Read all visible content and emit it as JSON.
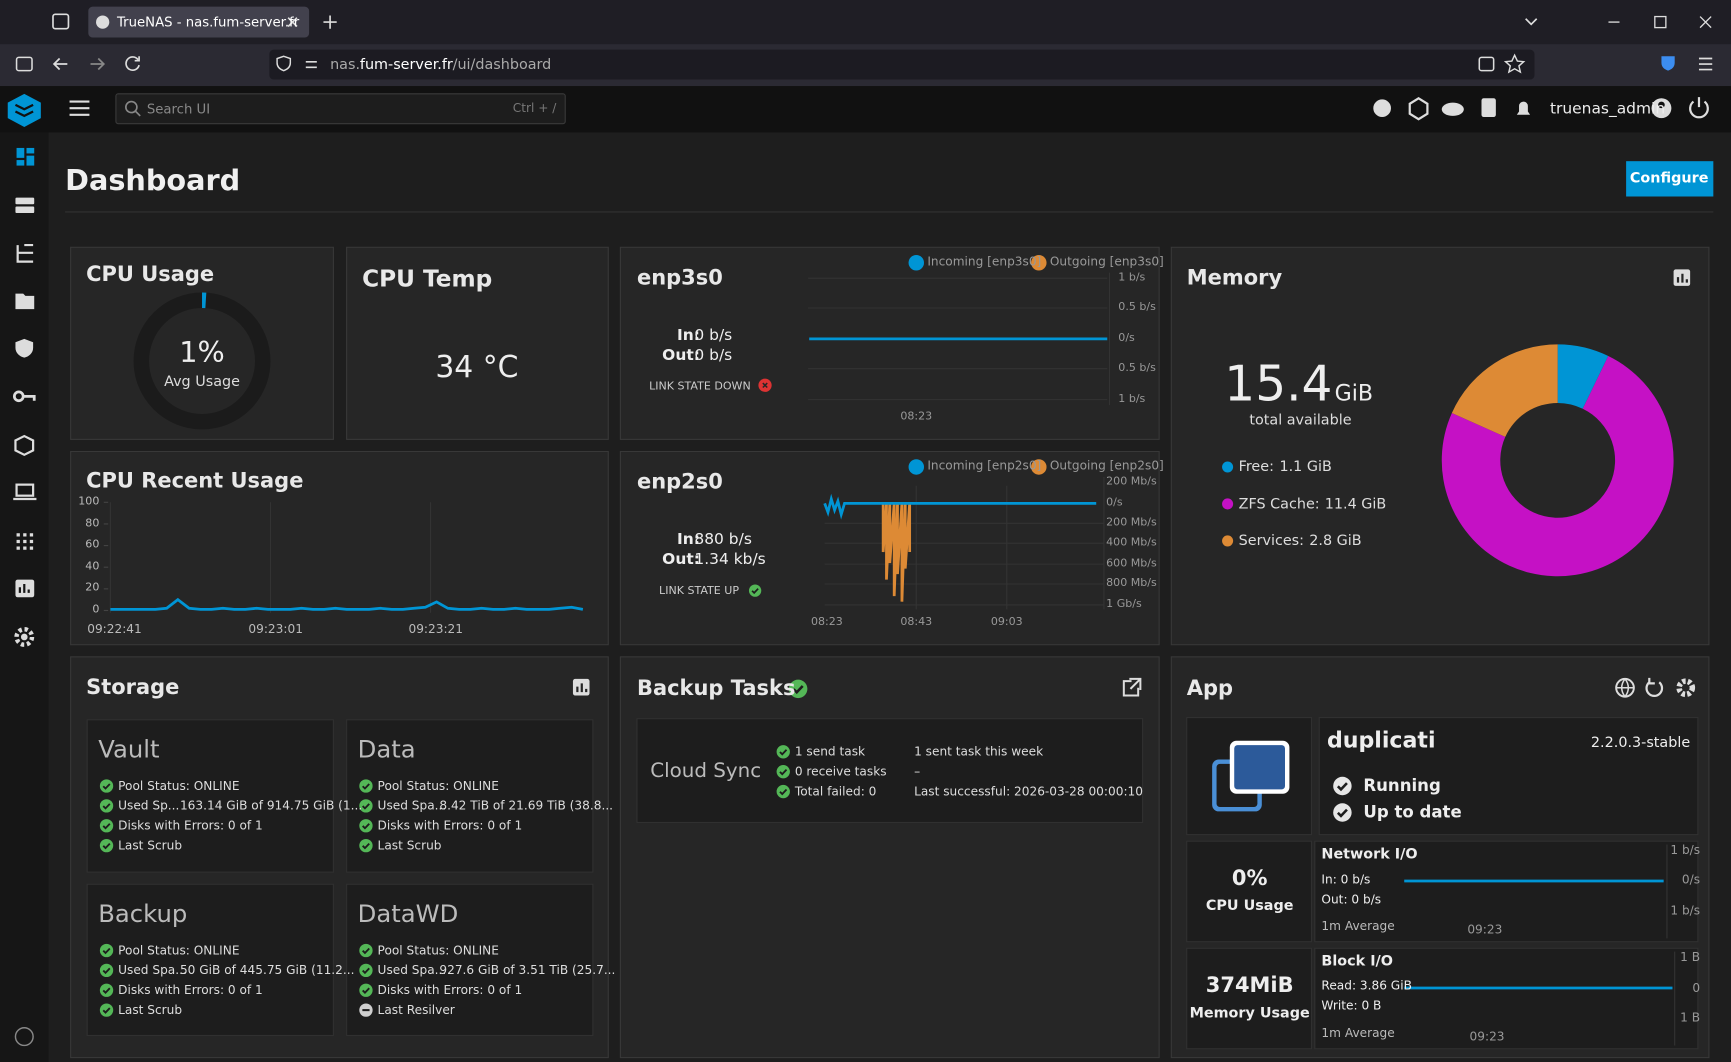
{
  "browser": {
    "tab_title": "TrueNAS - nas.fum-server.fr",
    "url": {
      "subdomain": "nas.",
      "domain": "fum-server.fr",
      "path": "/ui/dashboard"
    }
  },
  "topbar": {
    "search_placeholder": "Search UI",
    "search_shortcut": "Ctrl + /",
    "username": "truenas_admin"
  },
  "header": {
    "title": "Dashboard",
    "configure_button": "Configure"
  },
  "widgets": {
    "cpu_usage": {
      "title": "CPU Usage",
      "value": 1,
      "value_label": "1%",
      "caption": "Avg Usage",
      "color": "#0095d5"
    },
    "cpu_temp": {
      "title": "CPU Temp",
      "reading": "34 °C"
    },
    "enp3s0": {
      "title": "enp3s0",
      "legend": [
        "Incoming [enp3s0]",
        "Outgoing [enp3s0]"
      ],
      "in_label": "In:",
      "in_value": "0 b/s",
      "out_label": "Out:",
      "out_value": "0 b/s",
      "link_state": "LINK STATE DOWN",
      "y_labels": [
        "1 b/s",
        "0.5 b/s",
        "0/s",
        "0.5 b/s",
        "1 b/s"
      ],
      "x_labels": [
        "08:23"
      ]
    },
    "enp2s0": {
      "title": "enp2s0",
      "legend": [
        "Incoming [enp2s0]",
        "Outgoing [enp2s0]"
      ],
      "in_label": "In:",
      "in_value": "880 b/s",
      "out_label": "Out:",
      "out_value": "1.34 kb/s",
      "link_state": "LINK STATE UP",
      "y_labels": [
        "200 Mb/s",
        "0/s",
        "200 Mb/s",
        "400 Mb/s",
        "600 Mb/s",
        "800 Mb/s",
        "1 Gb/s"
      ],
      "x_labels": [
        "08:23",
        "08:43",
        "09:03"
      ]
    },
    "cpu_recent": {
      "type": "line",
      "title": "CPU Recent Usage",
      "color": "#0095d5",
      "ylim": [
        0,
        100
      ],
      "yticks": [
        0,
        20,
        40,
        60,
        80,
        100
      ],
      "x_labels": [
        "09:22:41",
        "09:23:01",
        "09:23:21"
      ],
      "values": [
        1,
        1,
        1,
        1,
        1,
        2,
        10,
        2,
        1,
        1,
        2,
        1,
        1,
        2,
        1,
        1,
        1,
        2,
        1,
        1,
        2,
        1,
        1,
        1,
        2,
        1,
        1,
        2,
        3,
        8,
        2,
        1,
        1,
        2,
        1,
        1,
        2,
        1,
        1,
        1,
        2,
        3,
        1
      ]
    },
    "memory": {
      "type": "pie",
      "title": "Memory",
      "total": "15.4",
      "total_unit": "GiB",
      "caption": "total available",
      "items": [
        {
          "label": "Free:",
          "value": 1.1,
          "value_label": "1.1 GiB",
          "color": "#0095d5"
        },
        {
          "label": "ZFS Cache:",
          "value": 11.4,
          "value_label": "11.4 GiB",
          "color": "#c511c5"
        },
        {
          "label": "Services:",
          "value": 2.8,
          "value_label": "2.8 GiB",
          "color": "#dd8a35"
        }
      ]
    },
    "storage": {
      "title": "Storage",
      "pools": [
        {
          "name": "Vault",
          "lines": [
            {
              "status": "ok",
              "text": "Pool Status: ONLINE"
            },
            {
              "status": "ok",
              "text": "Used Sp...",
              "detail": "163.14 GiB of 914.75 GiB (1..."
            },
            {
              "status": "ok",
              "text": "Disks with Errors: 0 of 1"
            },
            {
              "status": "ok",
              "text": "Last Scrub"
            }
          ]
        },
        {
          "name": "Data",
          "lines": [
            {
              "status": "ok",
              "text": "Pool Status: ONLINE"
            },
            {
              "status": "ok",
              "text": "Used Spa...",
              "detail": "8.42 TiB of 21.69 TiB (38.8..."
            },
            {
              "status": "ok",
              "text": "Disks with Errors: 0 of 1"
            },
            {
              "status": "ok",
              "text": "Last Scrub"
            }
          ]
        },
        {
          "name": "Backup",
          "lines": [
            {
              "status": "ok",
              "text": "Pool Status: ONLINE"
            },
            {
              "status": "ok",
              "text": "Used Spa...",
              "detail": "50 GiB of 445.75 GiB (11.2..."
            },
            {
              "status": "ok",
              "text": "Disks with Errors: 0 of 1"
            },
            {
              "status": "ok",
              "text": "Last Scrub"
            }
          ]
        },
        {
          "name": "DataWD",
          "lines": [
            {
              "status": "ok",
              "text": "Pool Status: ONLINE"
            },
            {
              "status": "ok",
              "text": "Used Spa...",
              "detail": "927.6 GiB of 3.51 TiB (25.7..."
            },
            {
              "status": "ok",
              "text": "Disks with Errors: 0 of 1"
            },
            {
              "status": "pending",
              "text": "Last Resilver"
            }
          ]
        }
      ]
    },
    "backup_tasks": {
      "title": "Backup Tasks",
      "name": "Cloud Sync",
      "items": [
        "1 send task",
        "0 receive tasks",
        "Total failed: 0"
      ],
      "details": [
        "1 sent task this week",
        "–",
        "Last successful: 2026-03-28 00:00:10"
      ]
    },
    "app": {
      "title": "App",
      "name": "duplicati",
      "version": "2.2.0.3-stable",
      "statuses": [
        "Running",
        "Up to date"
      ],
      "cpu": {
        "value": "0%",
        "label": "CPU Usage"
      },
      "memory": {
        "value": "374MiB",
        "label": "Memory Usage"
      },
      "network": {
        "title": "Network I/O",
        "in": "In: 0 b/s",
        "out": "Out: 0 b/s",
        "average": "1m Average",
        "time": "09:23",
        "y_labels": [
          "1 b/s",
          "0/s",
          "1 b/s"
        ]
      },
      "block": {
        "title": "Block I/O",
        "read": "Read: 3.86 GiB",
        "write": "Write: 0 B",
        "average": "1m Average",
        "time": "09:23",
        "y_labels": [
          "1 B",
          "0",
          "1 B"
        ]
      }
    }
  }
}
